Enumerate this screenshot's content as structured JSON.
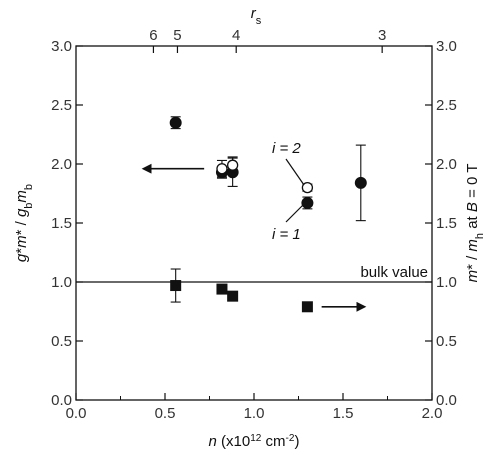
{
  "chart_data": {
    "type": "scatter",
    "x_axis": {
      "label_prefix": "n",
      "label_rest": " (x10",
      "label_exp": "12",
      "label_unit": " cm",
      "label_unit_exp": "-2",
      "label_close": ")",
      "lim": [
        0.0,
        2.0
      ],
      "ticks": [
        0.0,
        0.5,
        1.0,
        1.5,
        2.0
      ],
      "tick_labels": [
        "0.0",
        "0.5",
        "1.0",
        "1.5",
        "2.0"
      ]
    },
    "y_left": {
      "label": "g*m* / g_b m_b",
      "lim": [
        0.0,
        3.0
      ],
      "ticks": [
        0.0,
        0.5,
        1.0,
        1.5,
        2.0,
        2.5,
        3.0
      ],
      "tick_labels": [
        "0.0",
        "0.5",
        "1.0",
        "1.5",
        "2.0",
        "2.5",
        "3.0"
      ]
    },
    "y_right": {
      "label": "m* / m_h at B = 0 T",
      "lim": [
        0.0,
        3.0
      ],
      "ticks": [
        0.0,
        0.5,
        1.0,
        1.5,
        2.0,
        2.5,
        3.0
      ],
      "tick_labels": [
        "0.0",
        "0.5",
        "1.0",
        "1.5",
        "2.0",
        "2.5",
        "3.0"
      ]
    },
    "top_axis": {
      "label": "r",
      "label_sub": "s",
      "ticks": [
        {
          "label": "6",
          "n": 0.435
        },
        {
          "label": "5",
          "n": 0.57
        },
        {
          "label": "4",
          "n": 0.9
        },
        {
          "label": "3",
          "n": 1.72
        }
      ]
    },
    "series": [
      {
        "marker": "filled-circle",
        "points": [
          {
            "x": 0.56,
            "y": 2.35,
            "err": 0.05
          },
          {
            "x": 0.82,
            "y": 1.93,
            "err": 0.05
          },
          {
            "x": 0.88,
            "y": 1.93,
            "err": 0.12
          },
          {
            "x": 1.3,
            "y": 1.67,
            "err": 0.05
          },
          {
            "x": 1.6,
            "y": 1.84,
            "err": 0.32
          }
        ]
      },
      {
        "marker": "open-circle",
        "points": [
          {
            "x": 0.82,
            "y": 1.96,
            "err": 0.07
          },
          {
            "x": 0.88,
            "y": 1.99,
            "err": 0.07
          },
          {
            "x": 1.3,
            "y": 1.8,
            "err": 0.03
          }
        ]
      },
      {
        "marker": "filled-square",
        "points": [
          {
            "x": 0.56,
            "y": 0.97,
            "err": 0.14
          },
          {
            "x": 0.82,
            "y": 0.94,
            "err": 0.03
          },
          {
            "x": 0.88,
            "y": 0.88,
            "err": 0.03
          },
          {
            "x": 1.3,
            "y": 0.79,
            "err": 0.0
          }
        ]
      }
    ],
    "reference_line": {
      "y": 1.0,
      "label": "bulk value"
    },
    "annotations": {
      "i2": "i = 2",
      "i1": "i = 1"
    },
    "arrows": [
      {
        "direction": "left",
        "from": [
          0.72,
          1.96
        ],
        "to": [
          0.38,
          1.96
        ]
      },
      {
        "direction": "right",
        "from": [
          1.38,
          0.79
        ],
        "to": [
          1.62,
          0.79
        ]
      }
    ]
  }
}
